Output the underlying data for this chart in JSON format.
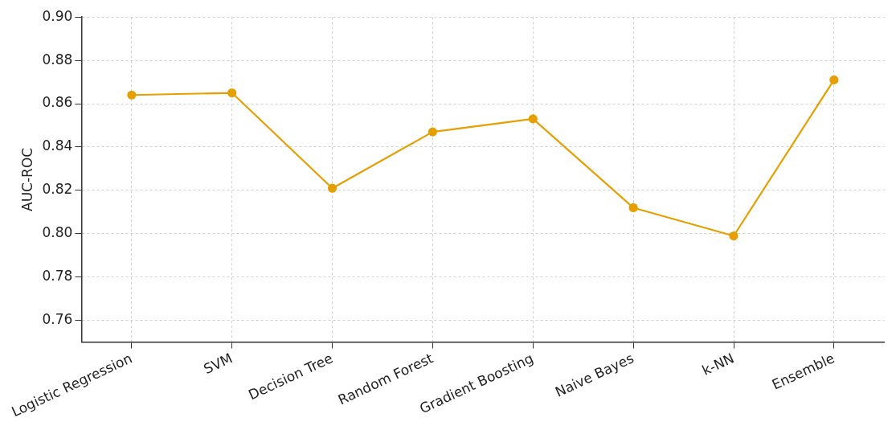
{
  "chart_data": {
    "type": "line",
    "ylabel": "AUC-ROC",
    "categories": [
      "Logistic Regression",
      "SVM",
      "Decision Tree",
      "Random Forest",
      "Gradient Boosting",
      "Naive Bayes",
      "k-NN",
      "Ensemble"
    ],
    "series": [
      {
        "color": "#e69f00",
        "values": [
          0.864,
          0.865,
          0.821,
          0.847,
          0.853,
          0.812,
          0.799,
          0.871
        ]
      }
    ],
    "ylim": [
      0.75,
      0.9
    ],
    "yticks": [
      0.76,
      0.78,
      {
        "value": 0.8,
        "label": "0.80"
      },
      0.82,
      0.84,
      0.86,
      0.88,
      {
        "value": 0.9,
        "label": "0.90"
      }
    ],
    "grid": true,
    "legend": false,
    "marker": "circle",
    "line_style": "solid"
  }
}
